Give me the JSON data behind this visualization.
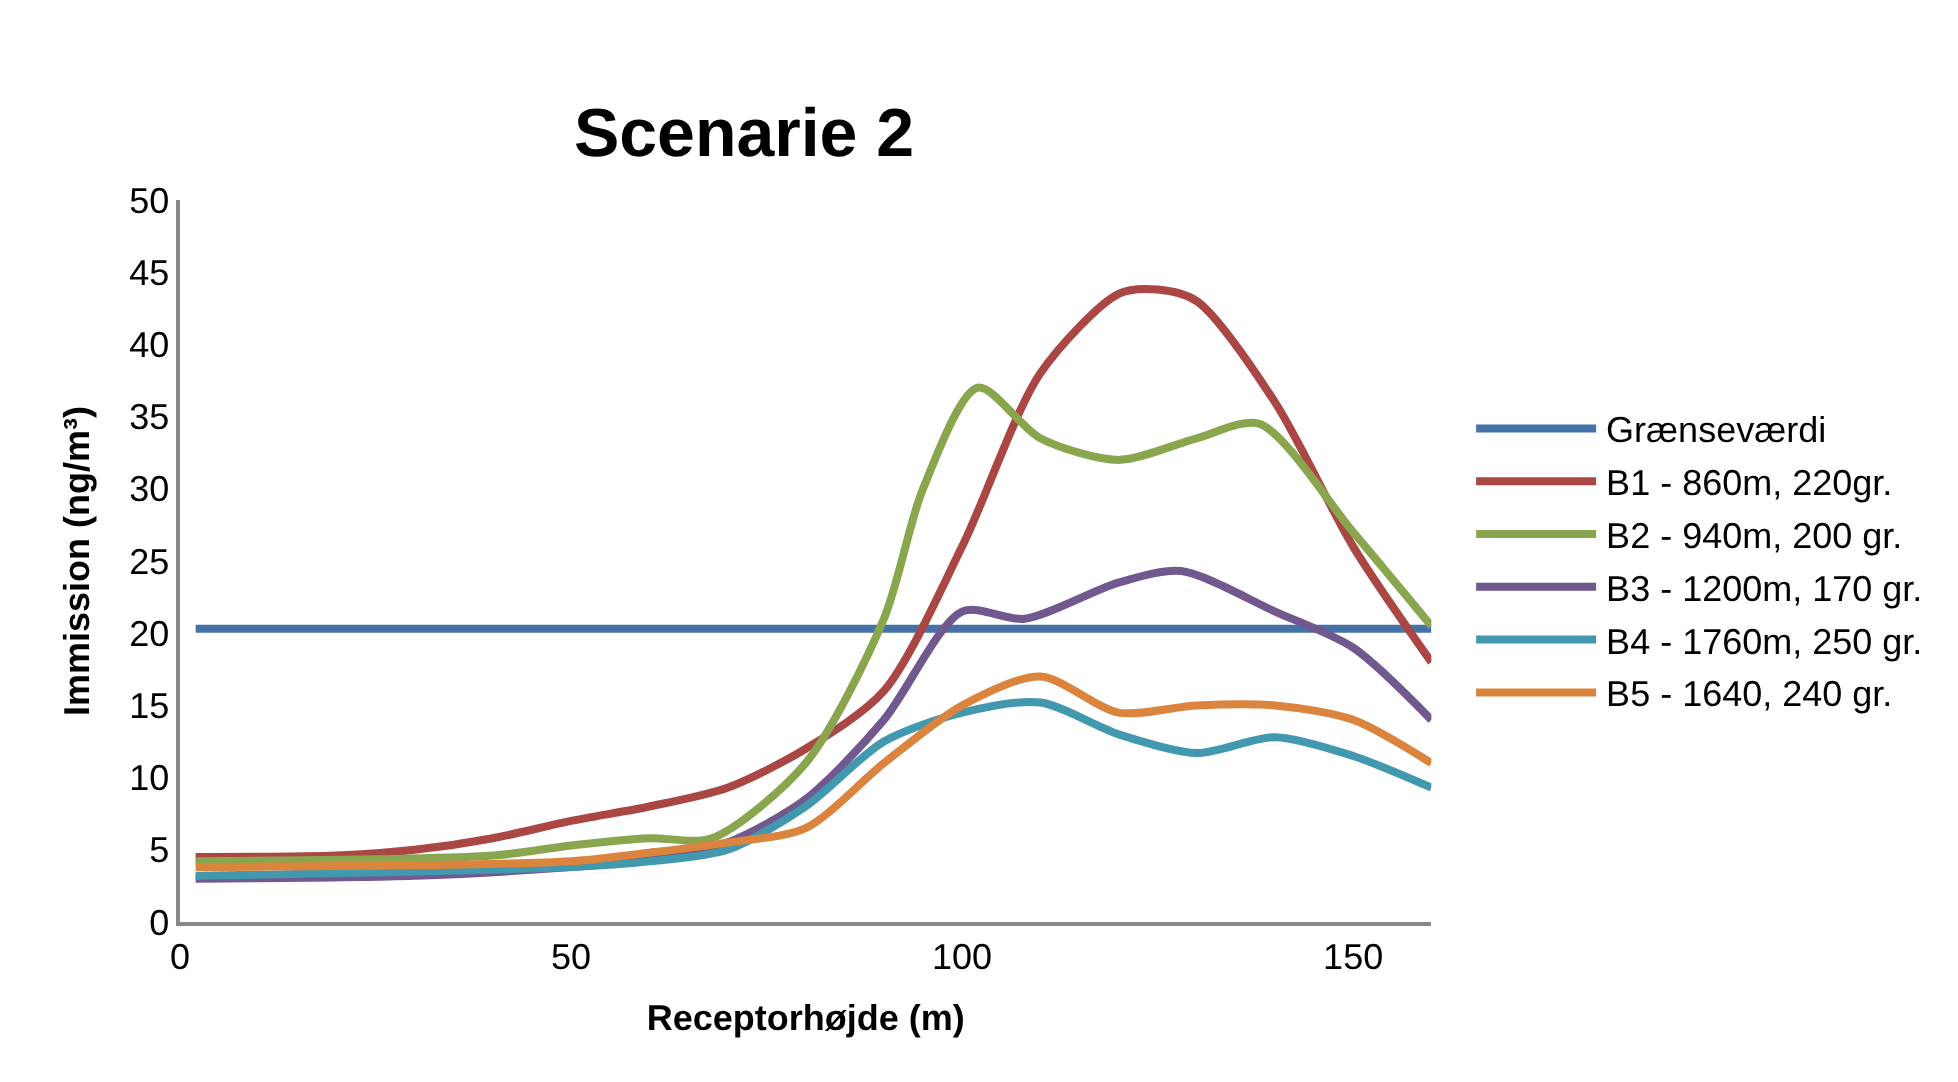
{
  "chart_data": {
    "type": "line",
    "title": "Scenarie 2",
    "xlabel": "Receptorhøjde (m)",
    "ylabel": "Immission (ng/m³)",
    "xlim": [
      0,
      160
    ],
    "xticks": [
      0,
      50,
      100,
      150
    ],
    "ylim": [
      0,
      50
    ],
    "yticks": [
      0,
      5,
      10,
      15,
      20,
      25,
      30,
      35,
      40,
      45,
      50
    ],
    "legend": "right",
    "marker": "none",
    "line_style": "solid",
    "series": [
      {
        "name": "Grænseværdi",
        "color": "#4572a7",
        "x": [
          2,
          160
        ],
        "values": [
          20.3,
          20.3
        ]
      },
      {
        "name": "B1 - 860m, 220gr.",
        "color": "#aa4643",
        "x": [
          2,
          20,
          30,
          40,
          50,
          60,
          70,
          80,
          90,
          100,
          110,
          120,
          125,
          130,
          140,
          150,
          160
        ],
        "values": [
          4.5,
          4.6,
          5,
          5.8,
          7,
          8,
          9.3,
          12,
          16,
          26,
          38,
          43.5,
          43.8,
          43,
          36,
          26,
          18
        ]
      },
      {
        "name": "B2 - 940m, 200 gr.",
        "color": "#89a54e",
        "x": [
          2,
          40,
          50,
          60,
          68,
          80,
          90,
          95,
          102,
          110,
          120,
          130,
          138,
          150,
          160
        ],
        "values": [
          4.2,
          4.6,
          5.3,
          5.8,
          5.8,
          11,
          21,
          30,
          37,
          33.5,
          32,
          33.5,
          34.5,
          27,
          20.5
        ]
      },
      {
        "name": "B3 - 1200m, 170 gr.",
        "color": "#71588f",
        "x": [
          2,
          30,
          50,
          60,
          70,
          80,
          90,
          100,
          108,
          120,
          128,
          140,
          150,
          160
        ],
        "values": [
          3,
          3.2,
          3.8,
          4.3,
          5.5,
          8.5,
          14,
          21.5,
          21,
          23.5,
          24.3,
          21.5,
          19,
          14
        ]
      },
      {
        "name": "B4 - 1760m, 250 gr.",
        "color": "#4198af",
        "x": [
          2,
          50,
          60,
          70,
          80,
          90,
          100,
          110,
          120,
          130,
          140,
          150,
          160
        ],
        "values": [
          3.2,
          3.8,
          4.2,
          5,
          8,
          12.5,
          14.5,
          15.2,
          13,
          11.7,
          12.8,
          11.5,
          9.3
        ]
      },
      {
        "name": "B5 - 1640, 240 gr.",
        "color": "#db843d",
        "x": [
          2,
          50,
          60,
          70,
          80,
          90,
          100,
          110,
          120,
          130,
          140,
          150,
          160
        ],
        "values": [
          3.8,
          4.2,
          4.8,
          5.5,
          6.5,
          11,
          15,
          17,
          14.5,
          15,
          15,
          14,
          11
        ]
      }
    ]
  }
}
